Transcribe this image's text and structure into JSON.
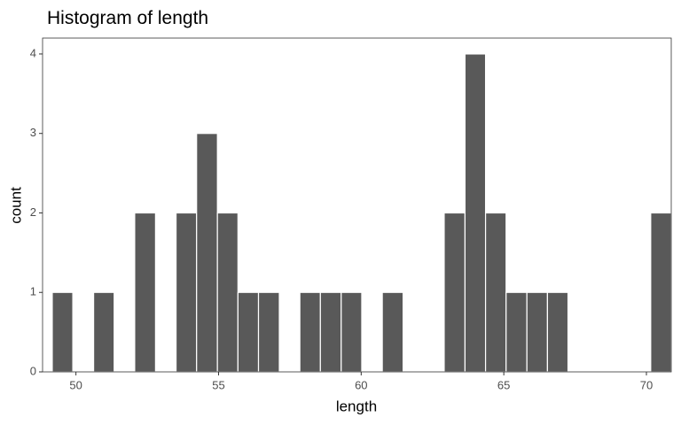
{
  "chart_data": {
    "type": "histogram",
    "title": "Histogram of length",
    "x_label": "length",
    "y_label": "count",
    "bins": [
      49.17,
      49.89,
      50.62,
      51.34,
      52.06,
      52.79,
      53.51,
      54.23,
      54.96,
      55.68,
      56.4,
      57.13,
      57.85,
      58.57,
      59.3,
      60.02,
      60.74,
      61.47,
      62.19,
      62.91,
      63.64,
      64.36,
      65.08,
      65.81,
      66.53,
      67.25,
      67.98,
      68.7,
      69.42,
      70.15,
      70.87
    ],
    "values": [
      1,
      0,
      1,
      0,
      2,
      0,
      2,
      3,
      2,
      1,
      1,
      0,
      1,
      1,
      1,
      0,
      1,
      0,
      0,
      2,
      4,
      2,
      1,
      1,
      1,
      0,
      0,
      0,
      0,
      2
    ],
    "color": "#595959",
    "xlim": [
      48.83,
      70.87
    ],
    "xticks": [
      50,
      55,
      60,
      65,
      70
    ],
    "ylim": [
      0,
      4.2
    ],
    "yticks": [
      0,
      1,
      2,
      3,
      4
    ]
  }
}
